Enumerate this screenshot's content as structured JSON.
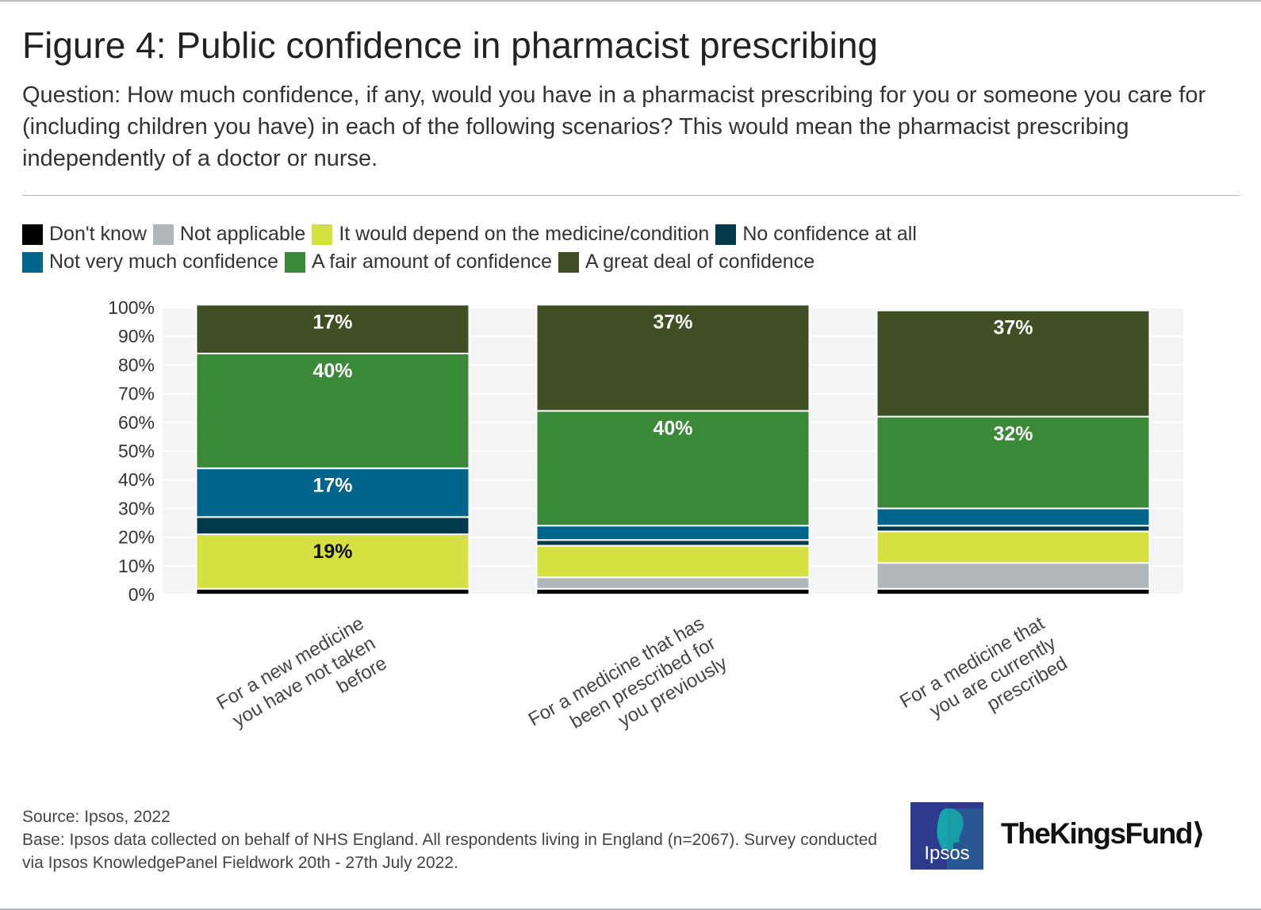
{
  "title": "Figure 4: Public confidence in pharmacist prescribing",
  "subtitle": "Question: How much confidence, if any, would you have in a pharmacist prescribing for you or someone you care for (including children you have) in each of the following scenarios? This would mean the pharmacist prescribing independently of a doctor or nurse.",
  "legend": {
    "row1": [
      {
        "label": "Don't know",
        "color": "#000000"
      },
      {
        "label": "Not applicable",
        "color": "#b1b6ba"
      },
      {
        "label": "It would depend on the medicine/condition",
        "color": "#d4e140"
      },
      {
        "label": "No confidence at all",
        "color": "#003a4c"
      }
    ],
    "row2": [
      {
        "label": "Not very much confidence",
        "color": "#00648b"
      },
      {
        "label": "A fair amount of confidence",
        "color": "#3a8938"
      },
      {
        "label": "A great deal of confidence",
        "color": "#3f4f23"
      }
    ]
  },
  "chart_data": {
    "type": "bar",
    "stacked": true,
    "title": "Figure 4: Public confidence in pharmacist prescribing",
    "xlabel": "",
    "ylabel": "",
    "ylim": [
      0,
      100
    ],
    "y_ticks": [
      "0%",
      "10%",
      "20%",
      "30%",
      "40%",
      "50%",
      "60%",
      "70%",
      "80%",
      "90%",
      "100%"
    ],
    "categories": [
      "For a new medicine you have not taken before",
      "For a medicine that has been prescribed for you previously",
      "For a medicine that you are currently prescribed"
    ],
    "category_lines": [
      [
        "For a new medicine",
        "you have not taken",
        "before"
      ],
      [
        "For a medicine that has",
        "been prescribed for",
        "you previously"
      ],
      [
        "For a medicine that",
        "you are currently",
        "prescribed"
      ]
    ],
    "series": [
      {
        "name": "Don't know",
        "color": "#000000",
        "values": [
          2,
          2,
          2
        ],
        "labels": [
          "",
          "",
          ""
        ]
      },
      {
        "name": "Not applicable",
        "color": "#b1b6ba",
        "values": [
          0,
          4,
          9
        ],
        "labels": [
          "",
          "",
          ""
        ]
      },
      {
        "name": "It would depend on the medicine/condition",
        "color": "#d4e140",
        "values": [
          19,
          11,
          11
        ],
        "labels": [
          "19%",
          "",
          ""
        ]
      },
      {
        "name": "No confidence at all",
        "color": "#003a4c",
        "values": [
          6,
          2,
          2
        ],
        "labels": [
          "",
          "",
          ""
        ]
      },
      {
        "name": "Not very much confidence",
        "color": "#00648b",
        "values": [
          17,
          5,
          6
        ],
        "labels": [
          "17%",
          "",
          ""
        ]
      },
      {
        "name": "A fair amount of confidence",
        "color": "#3a8938",
        "values": [
          40,
          40,
          32
        ],
        "labels": [
          "40%",
          "40%",
          "32%"
        ]
      },
      {
        "name": "A great deal of confidence",
        "color": "#3f4f23",
        "values": [
          17,
          37,
          37
        ],
        "labels": [
          "17%",
          "37%",
          "37%"
        ]
      }
    ],
    "label_colors": {
      "It would depend on the medicine/condition": "#111111",
      "default": "#ffffff"
    }
  },
  "source": {
    "line1": "Source: Ipsos, 2022",
    "line2": "Base: Ipsos data collected on behalf of NHS England. All respondents living in England (n=2067). Survey conducted via Ipsos KnowledgePanel Fieldwork 20th - 27th July 2022."
  },
  "logos": {
    "ipsos": "Ipsos",
    "kings_fund": "The King's Fund",
    "kings_fund_text": "TheKingsFund",
    "ipsos_color": "#2d3a8e",
    "ipsos_accent": "#16a5ab"
  }
}
